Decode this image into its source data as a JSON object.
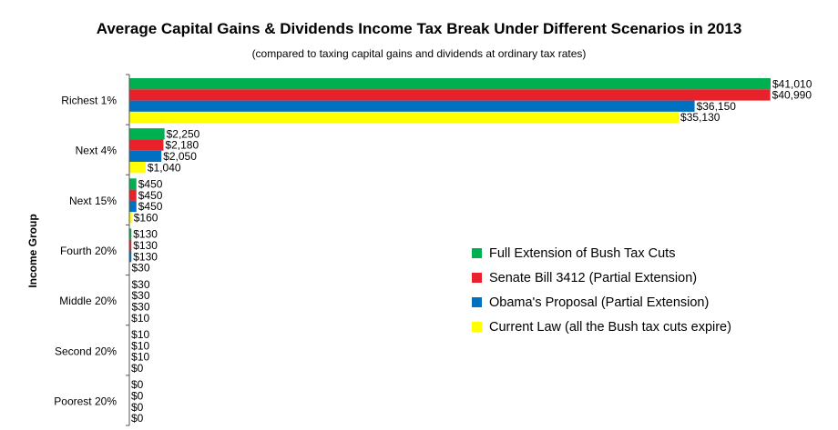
{
  "chart_data": {
    "type": "bar",
    "orientation": "horizontal",
    "title": "Average Capital Gains & Dividends Income Tax Break Under Different Scenarios in 2013",
    "subtitle": "(compared to taxing capital gains and dividends at ordinary tax rates)",
    "ylabel": "Income Group",
    "xlabel": "",
    "categories": [
      "Richest 1%",
      "Next 4%",
      "Next 15%",
      "Fourth 20%",
      "Middle 20%",
      "Second 20%",
      "Poorest 20%"
    ],
    "series": [
      {
        "name": "Full Extension of Bush Tax Cuts",
        "color": "#00b050",
        "values": [
          41010,
          2250,
          450,
          130,
          30,
          10,
          0
        ],
        "labels": [
          "$41,010",
          "$2,250",
          "$450",
          "$130",
          "$30",
          "$10",
          "$0"
        ]
      },
      {
        "name": "Senate Bill 3412 (Partial Extension)",
        "color": "#e8212a",
        "values": [
          40990,
          2180,
          450,
          130,
          30,
          10,
          0
        ],
        "labels": [
          "$40,990",
          "$2,180",
          "$450",
          "$130",
          "$30",
          "$10",
          "$0"
        ]
      },
      {
        "name": "Obama's Proposal (Partial Extension)",
        "color": "#0070c0",
        "values": [
          36150,
          2050,
          450,
          130,
          30,
          10,
          0
        ],
        "labels": [
          "$36,150",
          "$2,050",
          "$450",
          "$130",
          "$30",
          "$10",
          "$0"
        ]
      },
      {
        "name": "Current Law (all the Bush tax cuts expire)",
        "color": "#ffff00",
        "values": [
          35130,
          1040,
          160,
          30,
          10,
          0,
          0
        ],
        "labels": [
          "$35,130",
          "$1,040",
          "$160",
          "$30",
          "$10",
          "$0",
          "$0"
        ]
      }
    ],
    "xlim": [
      0,
      41010
    ],
    "grid": false,
    "legend_position": "right"
  }
}
